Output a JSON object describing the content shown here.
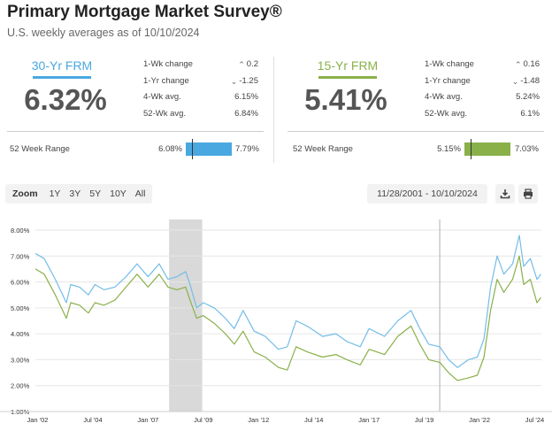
{
  "header": {
    "title": "Primary Mortgage Market Survey®",
    "subtitle": "U.S. weekly averages as of 10/10/2024"
  },
  "frm30": {
    "label": "30-Yr FRM",
    "rate": "6.32%",
    "color": "#4aa8e0",
    "stats": [
      {
        "label": "1-Wk change",
        "value": "0.2",
        "direction": "up"
      },
      {
        "label": "1-Yr change",
        "value": "-1.25",
        "direction": "down"
      },
      {
        "label": "4-Wk avg.",
        "value": "6.15%",
        "direction": ""
      },
      {
        "label": "52-Wk avg.",
        "value": "6.84%",
        "direction": ""
      }
    ],
    "range_label": "52 Week Range",
    "range_low": "6.08%",
    "range_high": "7.79%",
    "range_current_fraction": 0.14
  },
  "frm15": {
    "label": "15-Yr FRM",
    "rate": "5.41%",
    "color": "#8ab04a",
    "stats": [
      {
        "label": "1-Wk change",
        "value": "0.16",
        "direction": "up"
      },
      {
        "label": "1-Yr change",
        "value": "-1.48",
        "direction": "down"
      },
      {
        "label": "4-Wk avg.",
        "value": "5.24%",
        "direction": ""
      },
      {
        "label": "52-Wk avg.",
        "value": "6.1%",
        "direction": ""
      }
    ],
    "range_label": "52 Week Range",
    "range_low": "5.15%",
    "range_high": "7.03%",
    "range_current_fraction": 0.14
  },
  "toolbar": {
    "zoom_label": "Zoom",
    "zoom_options": [
      "1Y",
      "3Y",
      "5Y",
      "10Y",
      "All"
    ],
    "date_range": "11/28/2001 - 10/10/2024",
    "download_icon": "download-icon",
    "print_icon": "print-icon"
  },
  "chart_data": {
    "type": "line",
    "title": "",
    "xlabel": "",
    "ylabel": "",
    "ylim": [
      1.0,
      8.0
    ],
    "xlim": [
      2001.9,
      2024.8
    ],
    "y_ticks": [
      "1.00%",
      "2.00%",
      "3.00%",
      "4.00%",
      "5.00%",
      "6.00%",
      "7.00%",
      "8.00%"
    ],
    "x_ticks": [
      {
        "label": "Jan '02",
        "value": 2002.0
      },
      {
        "label": "Jul '04",
        "value": 2004.5
      },
      {
        "label": "Jan '07",
        "value": 2007.0
      },
      {
        "label": "Jul '09",
        "value": 2009.5
      },
      {
        "label": "Jan '12",
        "value": 2012.0
      },
      {
        "label": "Jul '14",
        "value": 2014.5
      },
      {
        "label": "Jan '17",
        "value": 2017.0
      },
      {
        "label": "Jul '19",
        "value": 2019.5
      },
      {
        "label": "Jan '22",
        "value": 2022.0
      },
      {
        "label": "Jul '24",
        "value": 2024.5
      }
    ],
    "grid": true,
    "recession_band": [
      2007.95,
      2009.45
    ],
    "reference_line": 2020.2,
    "series": [
      {
        "name": "30-Yr FRM",
        "color": "#74bde8",
        "x": [
          2001.9,
          2002.3,
          2002.8,
          2003.3,
          2003.5,
          2003.9,
          2004.3,
          2004.6,
          2005.0,
          2005.5,
          2006.0,
          2006.5,
          2007.0,
          2007.5,
          2007.9,
          2008.3,
          2008.7,
          2008.9,
          2009.2,
          2009.5,
          2010.0,
          2010.5,
          2010.9,
          2011.3,
          2011.8,
          2012.3,
          2012.9,
          2013.3,
          2013.7,
          2014.2,
          2014.9,
          2015.5,
          2016.0,
          2016.6,
          2017.0,
          2017.7,
          2018.3,
          2018.9,
          2019.3,
          2019.7,
          2020.2,
          2020.6,
          2021.0,
          2021.5,
          2021.9,
          2022.2,
          2022.5,
          2022.8,
          2023.1,
          2023.5,
          2023.8,
          2024.0,
          2024.3,
          2024.6,
          2024.78
        ],
        "values": [
          7.1,
          6.9,
          6.1,
          5.2,
          5.9,
          5.8,
          5.5,
          5.9,
          5.7,
          5.8,
          6.2,
          6.7,
          6.2,
          6.7,
          6.1,
          6.2,
          6.4,
          5.9,
          5.0,
          5.2,
          5.0,
          4.6,
          4.2,
          4.9,
          4.1,
          3.9,
          3.4,
          3.5,
          4.5,
          4.3,
          3.9,
          4.0,
          3.7,
          3.5,
          4.2,
          3.9,
          4.5,
          4.9,
          4.2,
          3.6,
          3.5,
          3.0,
          2.7,
          3.0,
          3.1,
          3.8,
          5.8,
          7.0,
          6.3,
          6.7,
          7.8,
          6.6,
          6.9,
          6.1,
          6.3
        ]
      },
      {
        "name": "15-Yr FRM",
        "color": "#8ab04a",
        "x": [
          2001.9,
          2002.3,
          2002.8,
          2003.3,
          2003.5,
          2003.9,
          2004.3,
          2004.6,
          2005.0,
          2005.5,
          2006.0,
          2006.5,
          2007.0,
          2007.5,
          2007.9,
          2008.3,
          2008.7,
          2008.9,
          2009.2,
          2009.5,
          2010.0,
          2010.5,
          2010.9,
          2011.3,
          2011.8,
          2012.3,
          2012.9,
          2013.3,
          2013.7,
          2014.2,
          2014.9,
          2015.5,
          2016.0,
          2016.6,
          2017.0,
          2017.7,
          2018.3,
          2018.9,
          2019.3,
          2019.7,
          2020.2,
          2020.6,
          2021.0,
          2021.5,
          2021.9,
          2022.2,
          2022.5,
          2022.8,
          2023.1,
          2023.5,
          2023.8,
          2024.0,
          2024.3,
          2024.6,
          2024.78
        ],
        "values": [
          6.5,
          6.3,
          5.5,
          4.6,
          5.2,
          5.1,
          4.8,
          5.2,
          5.1,
          5.3,
          5.8,
          6.3,
          5.8,
          6.3,
          5.8,
          5.7,
          5.8,
          5.3,
          4.6,
          4.7,
          4.4,
          4.0,
          3.6,
          4.1,
          3.3,
          3.1,
          2.7,
          2.6,
          3.5,
          3.3,
          3.1,
          3.2,
          3.0,
          2.8,
          3.4,
          3.2,
          3.9,
          4.3,
          3.6,
          3.0,
          2.9,
          2.5,
          2.2,
          2.3,
          2.4,
          3.1,
          4.9,
          6.1,
          5.6,
          6.1,
          7.0,
          5.9,
          6.1,
          5.2,
          5.4
        ]
      }
    ]
  }
}
